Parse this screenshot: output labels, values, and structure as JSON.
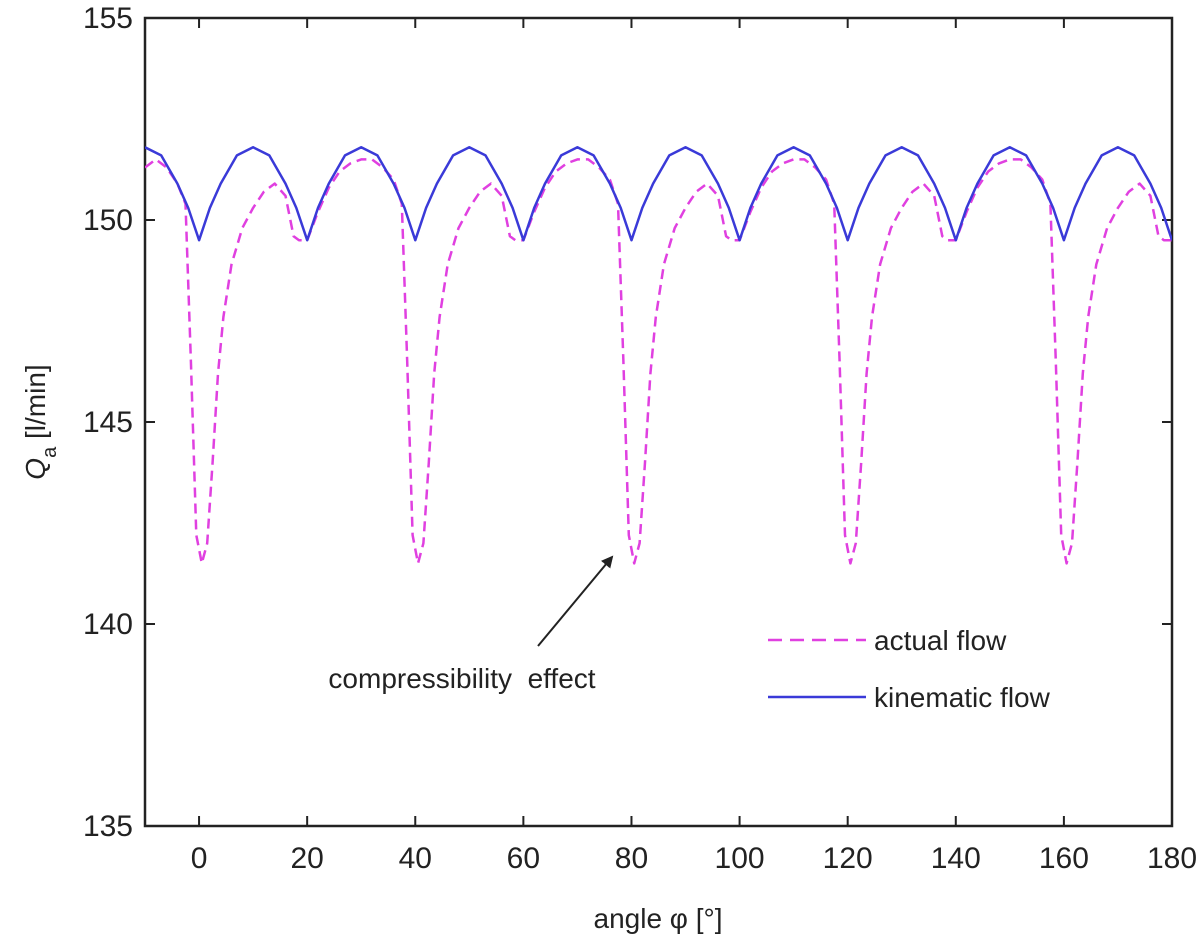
{
  "chart_data": {
    "type": "line",
    "xlabel": "angle φ [°]",
    "ylabel_main": "Q",
    "ylabel_sub": "a",
    "ylabel_unit": " [l/min]",
    "xlim": [
      -10,
      180
    ],
    "ylim": [
      135,
      155
    ],
    "xticks": [
      0,
      20,
      40,
      60,
      80,
      100,
      120,
      140,
      160,
      180
    ],
    "yticks": [
      135,
      140,
      145,
      150,
      155
    ],
    "grid": false,
    "legend_position": "lower-right",
    "annotation": {
      "text": "compressibility  effect",
      "target": [
        79,
        141.8
      ]
    },
    "series": [
      {
        "name": "actual flow",
        "color": "#e040e0",
        "dash": "dashed",
        "x": [
          -10,
          -8,
          -6,
          -4,
          -2.5,
          -1.5,
          -0.5,
          0.5,
          1.5,
          2.5,
          3.5,
          4.5,
          6,
          8,
          10,
          12,
          14,
          16,
          17.5,
          18.5,
          20,
          22,
          24,
          26,
          28,
          30,
          32,
          34,
          36,
          37.5,
          38.5,
          39.5,
          40.5,
          41.5,
          42.5,
          43.5,
          44.5,
          46,
          48,
          50,
          52,
          54,
          56,
          57.5,
          58.5,
          60,
          62,
          64,
          66,
          68,
          70,
          72,
          74,
          76,
          77.5,
          78.5,
          79.5,
          80.5,
          81.5,
          82.5,
          83.5,
          84.5,
          86,
          88,
          90,
          92,
          94,
          96,
          97.5,
          98.5,
          100,
          102,
          104,
          106,
          108,
          110,
          112,
          114,
          116,
          117.5,
          118.5,
          119.5,
          120.5,
          121.5,
          122.5,
          123.5,
          124.5,
          126,
          128,
          130,
          132,
          134,
          136,
          137.5,
          138.5,
          140,
          142,
          144,
          146,
          148,
          150,
          152,
          154,
          156,
          157.5,
          158.5,
          159.5,
          160.5,
          161.5,
          162.5,
          163.5,
          164.5,
          166,
          168,
          170,
          172,
          174,
          176,
          177.5,
          178.5,
          180
        ],
        "y": [
          151.3,
          151.5,
          151.3,
          150.9,
          150.4,
          146.5,
          142.2,
          141.5,
          142.0,
          144.0,
          146.2,
          147.6,
          148.9,
          149.8,
          150.3,
          150.7,
          150.9,
          150.6,
          149.6,
          149.5,
          149.5,
          150.2,
          150.8,
          151.2,
          151.4,
          151.5,
          151.5,
          151.3,
          151.0,
          150.4,
          146.5,
          142.2,
          141.5,
          142.0,
          144.0,
          146.2,
          147.6,
          148.9,
          149.8,
          150.3,
          150.7,
          150.9,
          150.6,
          149.6,
          149.5,
          149.5,
          150.2,
          150.8,
          151.2,
          151.4,
          151.5,
          151.5,
          151.3,
          151.0,
          150.4,
          146.5,
          142.2,
          141.5,
          142.0,
          144.0,
          146.2,
          147.6,
          148.9,
          149.8,
          150.3,
          150.7,
          150.9,
          150.6,
          149.6,
          149.5,
          149.5,
          150.2,
          150.8,
          151.2,
          151.4,
          151.5,
          151.5,
          151.3,
          151.0,
          150.4,
          146.5,
          142.2,
          141.5,
          142.0,
          144.0,
          146.2,
          147.6,
          148.9,
          149.8,
          150.3,
          150.7,
          150.9,
          150.6,
          149.6,
          149.5,
          149.5,
          150.2,
          150.8,
          151.2,
          151.4,
          151.5,
          151.5,
          151.3,
          151.0,
          150.4,
          146.5,
          142.2,
          141.5,
          142.0,
          144.0,
          146.2,
          147.6,
          148.9,
          149.8,
          150.3,
          150.7,
          150.9,
          150.6,
          149.6,
          149.5,
          149.5
        ]
      },
      {
        "name": "kinematic flow",
        "color": "#3a3ad8",
        "dash": "solid",
        "x": [
          -10,
          -7,
          -4,
          -2,
          0,
          2,
          4,
          7,
          10,
          13,
          16,
          18,
          20,
          22,
          24,
          27,
          30,
          33,
          36,
          38,
          40,
          42,
          44,
          47,
          50,
          53,
          56,
          58,
          60,
          62,
          64,
          67,
          70,
          73,
          76,
          78,
          80,
          82,
          84,
          87,
          90,
          93,
          96,
          98,
          100,
          102,
          104,
          107,
          110,
          113,
          116,
          118,
          120,
          122,
          124,
          127,
          130,
          133,
          136,
          138,
          140,
          142,
          144,
          147,
          150,
          153,
          156,
          158,
          160,
          162,
          164,
          167,
          170,
          173,
          176,
          178,
          180
        ],
        "y": [
          151.8,
          151.6,
          150.9,
          150.3,
          149.5,
          150.3,
          150.9,
          151.6,
          151.8,
          151.6,
          150.9,
          150.3,
          149.5,
          150.3,
          150.9,
          151.6,
          151.8,
          151.6,
          150.9,
          150.3,
          149.5,
          150.3,
          150.9,
          151.6,
          151.8,
          151.6,
          150.9,
          150.3,
          149.5,
          150.3,
          150.9,
          151.6,
          151.8,
          151.6,
          150.9,
          150.3,
          149.5,
          150.3,
          150.9,
          151.6,
          151.8,
          151.6,
          150.9,
          150.3,
          149.5,
          150.3,
          150.9,
          151.6,
          151.8,
          151.6,
          150.9,
          150.3,
          149.5,
          150.3,
          150.9,
          151.6,
          151.8,
          151.6,
          150.9,
          150.3,
          149.5,
          150.3,
          150.9,
          151.6,
          151.8,
          151.6,
          150.9,
          150.3,
          149.5,
          150.3,
          150.9,
          151.6,
          151.8,
          151.6,
          150.9,
          150.3,
          149.5
        ]
      }
    ]
  }
}
